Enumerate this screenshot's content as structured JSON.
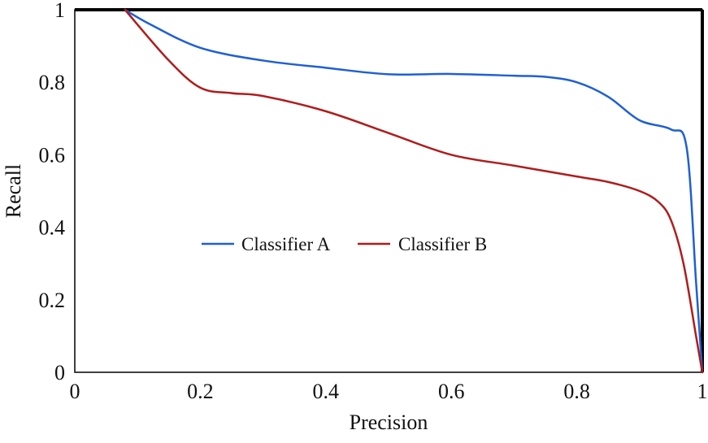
{
  "chart_data": {
    "type": "line",
    "title": "",
    "xlabel": "Precision",
    "ylabel": "Recall",
    "xlim": [
      0,
      1
    ],
    "ylim": [
      0,
      1
    ],
    "xticks": [
      "0",
      "0.2",
      "0.4",
      "0.6",
      "0.8",
      "1"
    ],
    "yticks": [
      "0",
      "0.2",
      "0.4",
      "0.6",
      "0.8",
      "1"
    ],
    "grid": false,
    "legend_position": "center",
    "series": [
      {
        "name": "Classifier A",
        "color": "#1f5fd6",
        "x": [
          0.08,
          0.12,
          0.2,
          0.3,
          0.4,
          0.5,
          0.6,
          0.7,
          0.75,
          0.8,
          0.85,
          0.9,
          0.95,
          0.975,
          0.99,
          1.0
        ],
        "y": [
          1.0,
          0.96,
          0.895,
          0.86,
          0.84,
          0.822,
          0.823,
          0.818,
          0.815,
          0.8,
          0.76,
          0.695,
          0.67,
          0.62,
          0.25,
          0.0
        ]
      },
      {
        "name": "Classifier B",
        "color": "#b01c1c",
        "x": [
          0.08,
          0.15,
          0.2,
          0.25,
          0.3,
          0.4,
          0.5,
          0.6,
          0.7,
          0.8,
          0.85,
          0.9,
          0.93,
          0.95,
          0.97,
          0.99,
          1.0
        ],
        "y": [
          1.0,
          0.86,
          0.785,
          0.77,
          0.762,
          0.72,
          0.66,
          0.6,
          0.57,
          0.54,
          0.525,
          0.5,
          0.47,
          0.42,
          0.3,
          0.1,
          0.0
        ]
      }
    ]
  }
}
